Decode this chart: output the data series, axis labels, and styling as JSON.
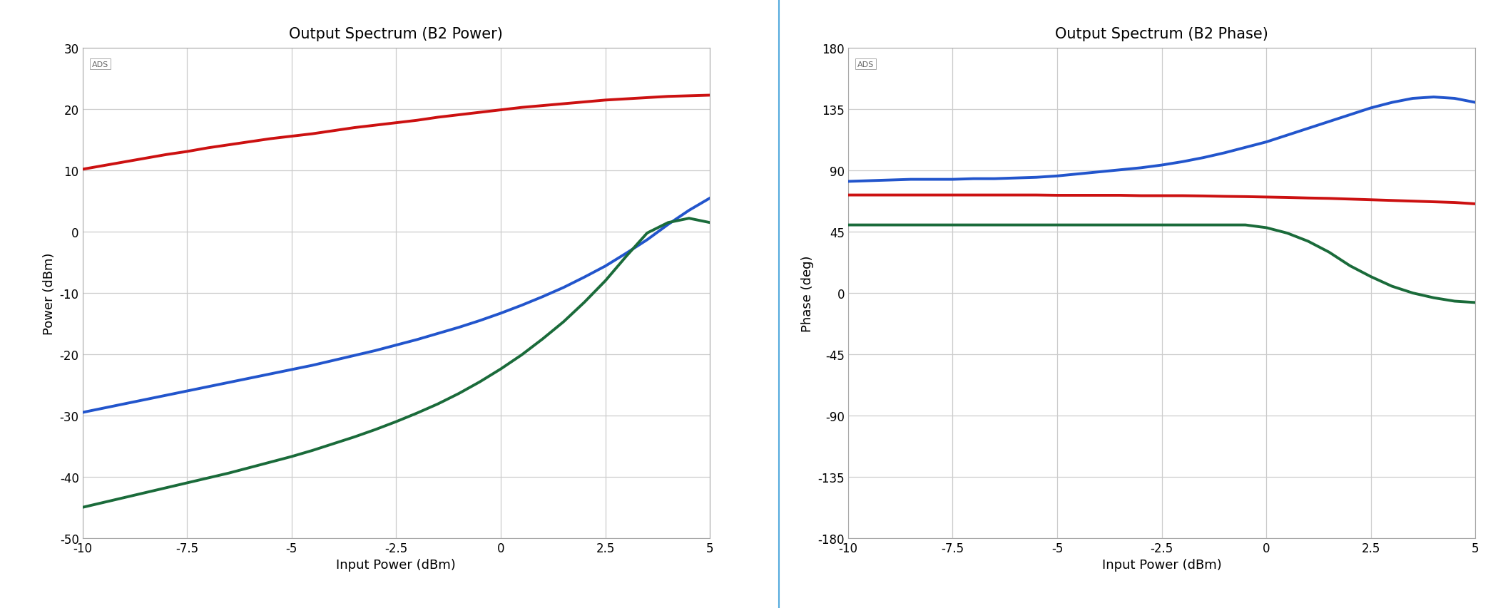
{
  "left_title": "Output Spectrum (B2 Power)",
  "right_title": "Output Spectrum (B2 Phase)",
  "xlabel": "Input Power (dBm)",
  "left_ylabel": "Power (dBm)",
  "right_ylabel": "Phase (deg)",
  "x": [
    -10.0,
    -9.5,
    -9.0,
    -8.5,
    -8.0,
    -7.5,
    -7.0,
    -6.5,
    -6.0,
    -5.5,
    -5.0,
    -4.5,
    -4.0,
    -3.5,
    -3.0,
    -2.5,
    -2.0,
    -1.5,
    -1.0,
    -0.5,
    0.0,
    0.5,
    1.0,
    1.5,
    2.0,
    2.5,
    3.0,
    3.5,
    4.0,
    4.5,
    5.0
  ],
  "left_red": [
    10.2,
    10.8,
    11.4,
    12.0,
    12.6,
    13.1,
    13.7,
    14.2,
    14.7,
    15.2,
    15.6,
    16.0,
    16.5,
    17.0,
    17.4,
    17.8,
    18.2,
    18.7,
    19.1,
    19.5,
    19.9,
    20.3,
    20.6,
    20.9,
    21.2,
    21.5,
    21.7,
    21.9,
    22.1,
    22.2,
    22.3
  ],
  "left_blue": [
    -29.5,
    -28.8,
    -28.1,
    -27.4,
    -26.7,
    -26.0,
    -25.3,
    -24.6,
    -23.9,
    -23.2,
    -22.5,
    -21.8,
    -21.0,
    -20.2,
    -19.4,
    -18.5,
    -17.6,
    -16.6,
    -15.6,
    -14.5,
    -13.3,
    -12.0,
    -10.6,
    -9.1,
    -7.4,
    -5.6,
    -3.5,
    -1.3,
    1.2,
    3.5,
    5.5
  ],
  "left_green": [
    -45.0,
    -44.2,
    -43.4,
    -42.6,
    -41.8,
    -41.0,
    -40.2,
    -39.4,
    -38.5,
    -37.6,
    -36.7,
    -35.7,
    -34.6,
    -33.5,
    -32.3,
    -31.0,
    -29.6,
    -28.1,
    -26.4,
    -24.5,
    -22.4,
    -20.1,
    -17.5,
    -14.7,
    -11.5,
    -8.0,
    -4.0,
    -0.2,
    1.5,
    2.2,
    1.5
  ],
  "right_red": [
    72.0,
    72.0,
    72.0,
    72.0,
    72.0,
    72.0,
    72.0,
    72.0,
    72.0,
    72.0,
    71.8,
    71.8,
    71.8,
    71.8,
    71.5,
    71.5,
    71.5,
    71.3,
    71.0,
    70.8,
    70.5,
    70.2,
    69.8,
    69.5,
    69.0,
    68.5,
    68.0,
    67.5,
    67.0,
    66.5,
    65.5
  ],
  "right_blue": [
    82.0,
    82.5,
    83.0,
    83.5,
    83.5,
    83.5,
    84.0,
    84.0,
    84.5,
    85.0,
    86.0,
    87.5,
    89.0,
    90.5,
    92.0,
    94.0,
    96.5,
    99.5,
    103.0,
    107.0,
    111.0,
    116.0,
    121.0,
    126.0,
    131.0,
    136.0,
    140.0,
    143.0,
    144.0,
    143.0,
    140.0
  ],
  "right_green": [
    50.0,
    50.0,
    50.0,
    50.0,
    50.0,
    50.0,
    50.0,
    50.0,
    50.0,
    50.0,
    50.0,
    50.0,
    50.0,
    50.0,
    50.0,
    50.0,
    50.0,
    50.0,
    50.0,
    50.0,
    48.0,
    44.0,
    38.0,
    30.0,
    20.0,
    12.0,
    5.0,
    0.0,
    -3.5,
    -6.0,
    -7.0
  ],
  "left_xlim": [
    -10.0,
    5.0
  ],
  "left_ylim": [
    -50,
    30
  ],
  "right_xlim": [
    -10.0,
    5.0
  ],
  "right_ylim": [
    -180,
    180
  ],
  "left_xticks": [
    -10.0,
    -7.5,
    -5.0,
    -2.5,
    0.0,
    2.5,
    5.0
  ],
  "right_xticks": [
    -10.0,
    -7.5,
    -5.0,
    -2.5,
    0.0,
    2.5,
    5.0
  ],
  "left_yticks": [
    -50,
    -40,
    -30,
    -20,
    -10,
    0,
    10,
    20,
    30
  ],
  "right_yticks": [
    -180,
    -135,
    -90,
    -45,
    0,
    45,
    90,
    135,
    180
  ],
  "red_color": "#cc1111",
  "blue_color": "#2255cc",
  "green_color": "#1a6b3a",
  "line_width": 2.8,
  "bg_color": "#ffffff",
  "grid_color": "#cccccc",
  "ads_label": "ADS",
  "title_fontsize": 15,
  "label_fontsize": 13,
  "tick_fontsize": 12,
  "ads_fontsize": 8,
  "divider_color": "#55aadd"
}
